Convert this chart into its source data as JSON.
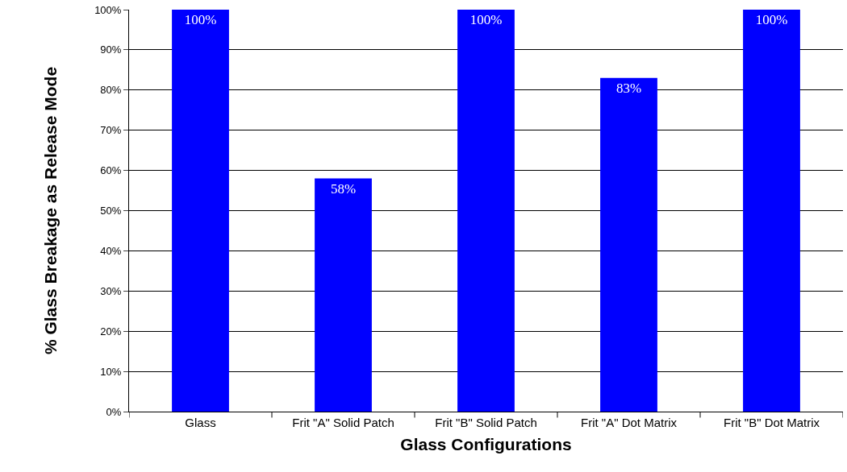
{
  "chart_data": {
    "type": "bar",
    "xlabel": "Glass Configurations",
    "ylabel": "% Glass Breakage as Release Mode",
    "categories": [
      "Glass",
      "Frit \"A\" Solid Patch",
      "Frit \"B\" Solid Patch",
      "Frit \"A\" Dot Matrix",
      "Frit \"B\" Dot Matrix"
    ],
    "values": [
      100,
      58,
      100,
      83,
      100
    ],
    "value_labels": [
      "100%",
      "58%",
      "100%",
      "83%",
      "100%"
    ],
    "color": "#0000ff",
    "ylim": [
      0,
      100
    ],
    "yticks": [
      {
        "value": 0,
        "label": "0%"
      },
      {
        "value": 10,
        "label": "10%"
      },
      {
        "value": 20,
        "label": "20%"
      },
      {
        "value": 30,
        "label": "30%"
      },
      {
        "value": 40,
        "label": "40%"
      },
      {
        "value": 50,
        "label": "50%"
      },
      {
        "value": 60,
        "label": "60%"
      },
      {
        "value": 70,
        "label": "70%"
      },
      {
        "value": 80,
        "label": "80%"
      },
      {
        "value": 90,
        "label": "90%"
      },
      {
        "value": 100,
        "label": "100%"
      }
    ],
    "grid": "y"
  }
}
